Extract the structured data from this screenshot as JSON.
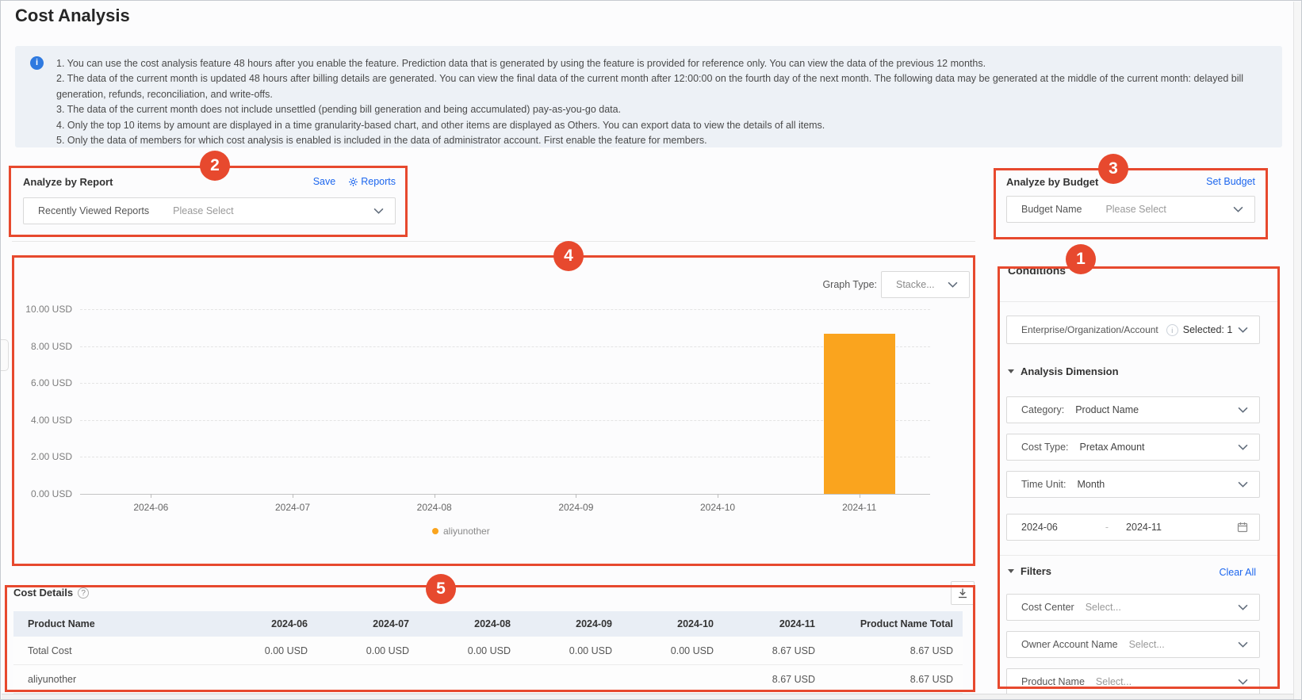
{
  "page": {
    "title": "Cost Analysis"
  },
  "notice": {
    "lines": [
      "1. You can use the cost analysis feature 48 hours after you enable the feature. Prediction data that is generated by using the feature is provided for reference only. You can view the data of the previous 12 months.",
      "2. The data of the current month is updated 48 hours after billing details are generated. You can view the final data of the current month after 12:00:00 on the fourth day of the next month. The following data may be generated at the middle of the current month: delayed bill generation, refunds, reconciliation, and write-offs.",
      "3. The data of the current month does not include unsettled (pending bill generation and being accumulated) pay-as-you-go data.",
      "4. Only the top 10 items by amount are displayed in a time granularity-based chart, and other items are displayed as Others. You can export data to view the details of all items.",
      "5. Only the data of members for which cost analysis is enabled is included in the data of administrator account. First enable the feature for members."
    ]
  },
  "analyze_by_report": {
    "title": "Analyze by Report",
    "save_label": "Save",
    "reports_label": "Reports",
    "select_label": "Recently Viewed Reports",
    "select_placeholder": "Please Select"
  },
  "analyze_by_budget": {
    "title": "Analyze by Budget",
    "set_budget_label": "Set Budget",
    "select_label": "Budget Name",
    "select_placeholder": "Please Select"
  },
  "chart": {
    "graph_type_label": "Graph Type:",
    "graph_type_value": "Stacke..."
  },
  "chart_data": {
    "type": "bar",
    "categories": [
      "2024-06",
      "2024-07",
      "2024-08",
      "2024-09",
      "2024-10",
      "2024-11"
    ],
    "series": [
      {
        "name": "aliyunother",
        "color": "#FAA41E",
        "values": [
          0,
          0,
          0,
          0,
          0,
          8.67
        ]
      }
    ],
    "y_tick_labels": [
      "10.00 USD",
      "8.00 USD",
      "6.00 USD",
      "4.00 USD",
      "2.00 USD",
      "0.00 USD"
    ],
    "ylim": [
      0,
      10
    ],
    "unit": "USD",
    "grid": "horizontal-dashed",
    "legend_position": "bottom"
  },
  "conditions": {
    "title": "Conditions",
    "account": {
      "label": "Enterprise/Organization/Account",
      "value": "Selected: 1"
    },
    "analysis_dimension": {
      "title": "Analysis Dimension",
      "fields": [
        {
          "label": "Category:",
          "value": "Product Name"
        },
        {
          "label": "Cost Type:",
          "value": "Pretax Amount"
        },
        {
          "label": "Time Unit:",
          "value": "Month"
        }
      ],
      "date_range": {
        "start": "2024-06",
        "separator": "-",
        "end": "2024-11"
      }
    },
    "filters": {
      "title": "Filters",
      "clear_all_label": "Clear All",
      "fields": [
        {
          "label": "Cost Center",
          "value": "Select..."
        },
        {
          "label": "Owner Account Name",
          "value": "Select..."
        },
        {
          "label": "Product Name",
          "value": "Select..."
        }
      ]
    }
  },
  "cost_details": {
    "title": "Cost Details",
    "columns": [
      "Product Name",
      "2024-06",
      "2024-07",
      "2024-08",
      "2024-09",
      "2024-10",
      "2024-11",
      "Product Name Total"
    ],
    "rows": [
      {
        "name": "Total Cost",
        "values": [
          "0.00 USD",
          "0.00 USD",
          "0.00 USD",
          "0.00 USD",
          "0.00 USD",
          "8.67 USD",
          "8.67 USD"
        ]
      },
      {
        "name": "aliyunother",
        "values": [
          "",
          "",
          "",
          "",
          "",
          "8.67 USD",
          "8.67 USD"
        ]
      }
    ]
  },
  "annotations": [
    "1",
    "2",
    "3",
    "4",
    "5"
  ],
  "colors": {
    "annotation_red": "#e7492e",
    "bar_orange": "#FAA41E",
    "link_blue": "#1c66ee",
    "notice_bg": "#edf1f6",
    "table_header_bg": "#e9eef5"
  }
}
